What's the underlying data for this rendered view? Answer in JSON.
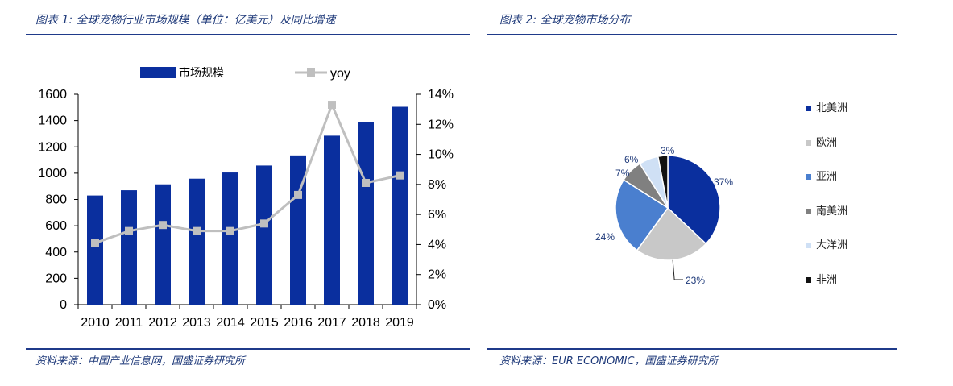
{
  "left_panel": {
    "title": "图表 1:  全球宠物行业市场规模（单位：亿美元）及同比增速",
    "source": "资料来源：中国产业信息网，国盛证券研究所"
  },
  "right_panel": {
    "title": "图表 2:  全球宠物市场分布",
    "source": "资料来源：EUR ECONOMIC，国盛证券研究所"
  },
  "chart_data": [
    {
      "type": "bar",
      "categories": [
        "2010",
        "2011",
        "2012",
        "2013",
        "2014",
        "2015",
        "2016",
        "2017",
        "2018",
        "2019"
      ],
      "series": [
        {
          "name": "市场规模",
          "kind": "bar",
          "axis": "left",
          "color": "#0a2f9e",
          "values": [
            830,
            870,
            915,
            958,
            1005,
            1058,
            1135,
            1285,
            1388,
            1505
          ]
        },
        {
          "name": "yoy",
          "kind": "line",
          "axis": "right",
          "color": "#bfbfbf",
          "values": [
            4.1,
            4.9,
            5.3,
            4.9,
            4.9,
            5.4,
            7.3,
            13.3,
            8.1,
            8.6
          ]
        }
      ],
      "ylim": [
        0,
        1600
      ],
      "yticks": [
        "0",
        "200",
        "400",
        "600",
        "800",
        "1000",
        "1200",
        "1400",
        "1600"
      ],
      "y2lim": [
        0,
        14
      ],
      "y2ticks": [
        "0%",
        "2%",
        "4%",
        "6%",
        "8%",
        "10%",
        "12%",
        "14%"
      ],
      "legend_position": "top"
    },
    {
      "type": "pie",
      "slices": [
        {
          "label": "北美洲",
          "value": 37,
          "text": "37%",
          "color": "#0a2f9e"
        },
        {
          "label": "欧洲",
          "value": 23,
          "text": "23%",
          "color": "#c8c8c8"
        },
        {
          "label": "亚洲",
          "value": 24,
          "text": "24%",
          "color": "#4a7fcf"
        },
        {
          "label": "南美洲",
          "value": 7,
          "text": "7%",
          "color": "#808080"
        },
        {
          "label": "大洋洲",
          "value": 6,
          "text": "6%",
          "color": "#cfe0f5"
        },
        {
          "label": "非洲",
          "value": 3,
          "text": "3%",
          "color": "#111111"
        }
      ],
      "legend_position": "right"
    }
  ]
}
